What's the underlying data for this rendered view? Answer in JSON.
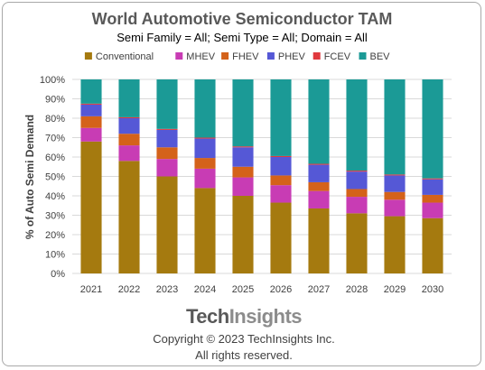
{
  "chart_data": {
    "type": "bar",
    "stacked": true,
    "percent": true,
    "title": "World Automotive Semiconductor TAM",
    "subtitle": "Semi Family = All; Semi Type = All; Domain = All",
    "ylabel": "% of Auto Semi Demand",
    "xlabel": "",
    "ylim": [
      0,
      100
    ],
    "yticks": [
      "0%",
      "10%",
      "20%",
      "30%",
      "40%",
      "50%",
      "60%",
      "70%",
      "80%",
      "90%",
      "100%"
    ],
    "legend_position": "top",
    "grid": true,
    "categories": [
      "2021",
      "2022",
      "2023",
      "2024",
      "2025",
      "2026",
      "2027",
      "2028",
      "2029",
      "2030"
    ],
    "series": [
      {
        "name": "Conventional",
        "color": "#a57a0f",
        "values": [
          68,
          58,
          50,
          44,
          40,
          36.5,
          33.5,
          31,
          29.5,
          28.5
        ]
      },
      {
        "name": "MHEV",
        "color": "#c83cb4",
        "values": [
          7,
          8,
          9,
          10,
          9.5,
          9,
          9,
          8.5,
          8.5,
          8
        ]
      },
      {
        "name": "FHEV",
        "color": "#d4621a",
        "values": [
          6,
          6,
          6,
          5.5,
          5.5,
          5,
          4.5,
          4,
          4,
          4
        ]
      },
      {
        "name": "PHEV",
        "color": "#5558d6",
        "values": [
          6,
          8,
          9,
          10,
          10,
          9.5,
          9,
          9,
          8.5,
          8
        ]
      },
      {
        "name": "FCEV",
        "color": "#e0393e",
        "values": [
          0.5,
          0.5,
          0.5,
          0.5,
          0.5,
          0.5,
          0.5,
          0.5,
          0.5,
          0.5
        ]
      },
      {
        "name": "BEV",
        "color": "#1b9a96",
        "values": [
          12.5,
          19.5,
          25.5,
          30,
          34.5,
          39.5,
          43.5,
          47,
          49,
          51
        ]
      }
    ]
  },
  "branding": {
    "logo_text_part1": "Tech",
    "logo_text_part2": "Insights",
    "logo_color": "#7f7f7f",
    "copyright": "Copyright © 2023 TechInsights Inc.",
    "rights": "All rights reserved."
  }
}
